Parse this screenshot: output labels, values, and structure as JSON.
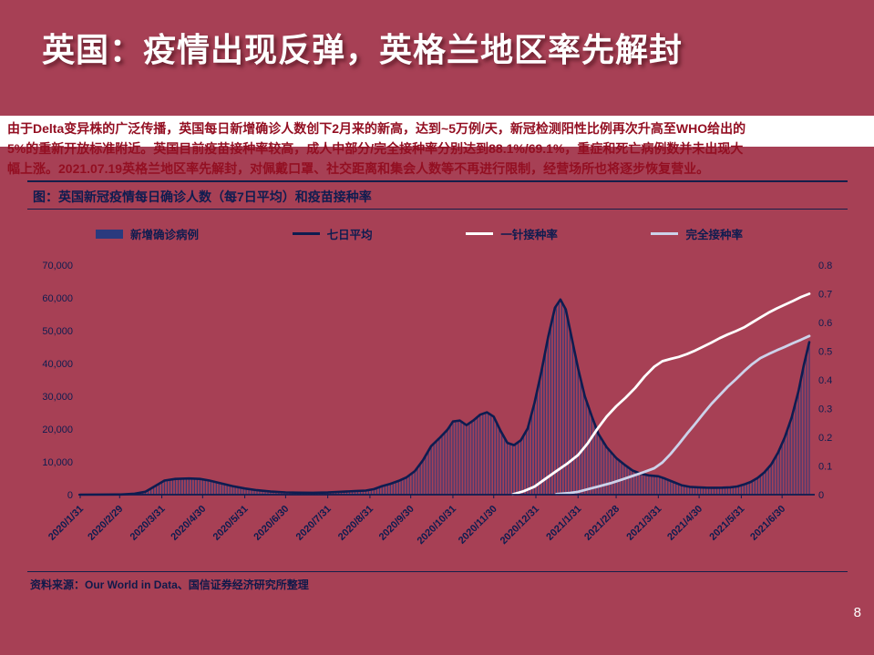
{
  "slide": {
    "title": "英国：疫情出现反弹，英格兰地区率先解封",
    "paragraph_lines": [
      "由于Delta变异株的广泛传播，英国每日新增确诊人数创下2月来的新高，达到~5万例/天，新冠检测阳性比例再次升高至WHO给出的",
      "5%的重新开放标准附近。英国目前疫苗接种率较高，成人中部分/完全接种率分别达到88.1%/69.1%，重症和死亡病例数并未出现大",
      "幅上涨。2021.07.19英格兰地区率先解封，对佩戴口罩、社交距离和集会人数等不再进行限制，经营场所也将逐步恢复营业。"
    ]
  },
  "colors": {
    "background": "#a74055",
    "navy": "#0e1c50",
    "bar": "#2a3a7e",
    "paragraph_red": "#930f22",
    "first_dose_line": "#ffffff",
    "full_dose_line": "#ccd2ea",
    "band_white": "#ffffff"
  },
  "chart_data": {
    "type": "bar",
    "subtype": "combo-bar-line-dual-axis",
    "title": "图：英国新冠疫情每日确诊人数（每7日平均）和疫苗接种率",
    "legend_position": "top",
    "grid": false,
    "x_axis": {
      "min_day": 0,
      "max_day": 536,
      "tick_days": [
        0,
        29,
        60,
        90,
        121,
        151,
        182,
        213,
        243,
        274,
        304,
        335,
        366,
        394,
        425,
        455,
        486,
        516
      ],
      "tick_labels": [
        "2020/1/31",
        "2020/2/29",
        "2020/3/31",
        "2020/4/30",
        "2020/5/31",
        "2020/6/30",
        "2020/7/31",
        "2020/8/31",
        "2020/9/30",
        "2020/10/31",
        "2020/11/30",
        "2020/12/31",
        "2021/1/31",
        "2021/2/28",
        "2021/3/31",
        "2021/4/30",
        "2021/5/31",
        "2021/6/30"
      ]
    },
    "y_left": {
      "min": 0,
      "max": 70000,
      "tick_labels": [
        "0",
        "10,000",
        "20,000",
        "30,000",
        "40,000",
        "50,000",
        "60,000",
        "70,000"
      ]
    },
    "y_right": {
      "min": 0,
      "max": 0.8,
      "tick_labels": [
        "0",
        "0.1",
        "0.2",
        "0.3",
        "0.4",
        "0.5",
        "0.6",
        "0.7",
        "0.8"
      ]
    },
    "series": [
      {
        "name": "新增确诊病例",
        "render": "bars",
        "axis": "left",
        "color": "#2a3a7e",
        "data_key": "daily_cases"
      },
      {
        "name": "七日平均",
        "render": "line",
        "axis": "left",
        "color": "#0e1c50",
        "width": 2.6,
        "data_key": "daily_cases"
      },
      {
        "name": "一针接种率",
        "render": "line",
        "axis": "right",
        "color": "#ffffff",
        "width": 2.8,
        "data_key": "first_dose_share"
      },
      {
        "name": "完全接种率",
        "render": "line",
        "axis": "right",
        "color": "#ccd2ea",
        "width": 2.8,
        "data_key": "full_dose_share"
      }
    ],
    "points": {
      "daily_cases": [
        [
          0,
          0
        ],
        [
          30,
          60
        ],
        [
          40,
          300
        ],
        [
          48,
          900
        ],
        [
          55,
          2600
        ],
        [
          62,
          4300
        ],
        [
          70,
          4800
        ],
        [
          80,
          4950
        ],
        [
          88,
          4800
        ],
        [
          95,
          4300
        ],
        [
          103,
          3500
        ],
        [
          112,
          2600
        ],
        [
          121,
          1900
        ],
        [
          130,
          1350
        ],
        [
          140,
          950
        ],
        [
          151,
          700
        ],
        [
          161,
          620
        ],
        [
          171,
          580
        ],
        [
          182,
          680
        ],
        [
          192,
          900
        ],
        [
          202,
          1080
        ],
        [
          210,
          1250
        ],
        [
          216,
          1700
        ],
        [
          222,
          2600
        ],
        [
          228,
          3300
        ],
        [
          234,
          4200
        ],
        [
          240,
          5300
        ],
        [
          246,
          7200
        ],
        [
          252,
          10500
        ],
        [
          258,
          14800
        ],
        [
          264,
          17200
        ],
        [
          270,
          19800
        ],
        [
          274,
          22300
        ],
        [
          279,
          22600
        ],
        [
          284,
          21200
        ],
        [
          289,
          22600
        ],
        [
          294,
          24400
        ],
        [
          299,
          25100
        ],
        [
          304,
          23800
        ],
        [
          309,
          19500
        ],
        [
          314,
          15800
        ],
        [
          319,
          15100
        ],
        [
          324,
          16600
        ],
        [
          329,
          20200
        ],
        [
          334,
          28000
        ],
        [
          339,
          37500
        ],
        [
          344,
          48000
        ],
        [
          349,
          57000
        ],
        [
          353,
          59500
        ],
        [
          357,
          56500
        ],
        [
          361,
          48500
        ],
        [
          366,
          38500
        ],
        [
          371,
          30000
        ],
        [
          376,
          24000
        ],
        [
          381,
          18500
        ],
        [
          387,
          14500
        ],
        [
          394,
          11200
        ],
        [
          400,
          9200
        ],
        [
          406,
          7400
        ],
        [
          412,
          6400
        ],
        [
          418,
          5900
        ],
        [
          425,
          5600
        ],
        [
          430,
          4900
        ],
        [
          436,
          3900
        ],
        [
          442,
          2900
        ],
        [
          448,
          2400
        ],
        [
          454,
          2250
        ],
        [
          460,
          2150
        ],
        [
          466,
          2100
        ],
        [
          472,
          2150
        ],
        [
          478,
          2250
        ],
        [
          483,
          2500
        ],
        [
          488,
          3100
        ],
        [
          493,
          3900
        ],
        [
          498,
          5100
        ],
        [
          503,
          6800
        ],
        [
          508,
          9200
        ],
        [
          513,
          12800
        ],
        [
          518,
          17500
        ],
        [
          523,
          23500
        ],
        [
          528,
          31500
        ],
        [
          532,
          39500
        ],
        [
          536,
          46500
        ]
      ],
      "first_dose_share": [
        [
          318,
          0.001
        ],
        [
          326,
          0.012
        ],
        [
          334,
          0.028
        ],
        [
          342,
          0.055
        ],
        [
          350,
          0.082
        ],
        [
          358,
          0.108
        ],
        [
          366,
          0.138
        ],
        [
          373,
          0.178
        ],
        [
          380,
          0.228
        ],
        [
          387,
          0.272
        ],
        [
          394,
          0.308
        ],
        [
          401,
          0.338
        ],
        [
          408,
          0.372
        ],
        [
          415,
          0.412
        ],
        [
          422,
          0.446
        ],
        [
          428,
          0.465
        ],
        [
          434,
          0.473
        ],
        [
          440,
          0.48
        ],
        [
          446,
          0.49
        ],
        [
          452,
          0.502
        ],
        [
          458,
          0.516
        ],
        [
          464,
          0.53
        ],
        [
          470,
          0.545
        ],
        [
          476,
          0.558
        ],
        [
          482,
          0.57
        ],
        [
          488,
          0.583
        ],
        [
          494,
          0.6
        ],
        [
          500,
          0.617
        ],
        [
          506,
          0.634
        ],
        [
          512,
          0.649
        ],
        [
          518,
          0.662
        ],
        [
          524,
          0.675
        ],
        [
          530,
          0.689
        ],
        [
          536,
          0.7
        ]
      ],
      "full_dose_share": [
        [
          350,
          0.002
        ],
        [
          360,
          0.006
        ],
        [
          366,
          0.01
        ],
        [
          374,
          0.02
        ],
        [
          382,
          0.03
        ],
        [
          390,
          0.04
        ],
        [
          398,
          0.052
        ],
        [
          406,
          0.065
        ],
        [
          414,
          0.078
        ],
        [
          422,
          0.092
        ],
        [
          428,
          0.112
        ],
        [
          434,
          0.142
        ],
        [
          440,
          0.176
        ],
        [
          446,
          0.212
        ],
        [
          452,
          0.246
        ],
        [
          458,
          0.282
        ],
        [
          464,
          0.316
        ],
        [
          470,
          0.346
        ],
        [
          476,
          0.376
        ],
        [
          482,
          0.402
        ],
        [
          488,
          0.43
        ],
        [
          494,
          0.455
        ],
        [
          500,
          0.476
        ],
        [
          506,
          0.49
        ],
        [
          512,
          0.503
        ],
        [
          518,
          0.515
        ],
        [
          524,
          0.528
        ],
        [
          530,
          0.54
        ],
        [
          536,
          0.553
        ]
      ]
    },
    "annotations": []
  },
  "footer": {
    "source_label": "资料来源：",
    "source_text": "Our World in Data、国信证券经济研究所整理",
    "page_number": "8"
  }
}
